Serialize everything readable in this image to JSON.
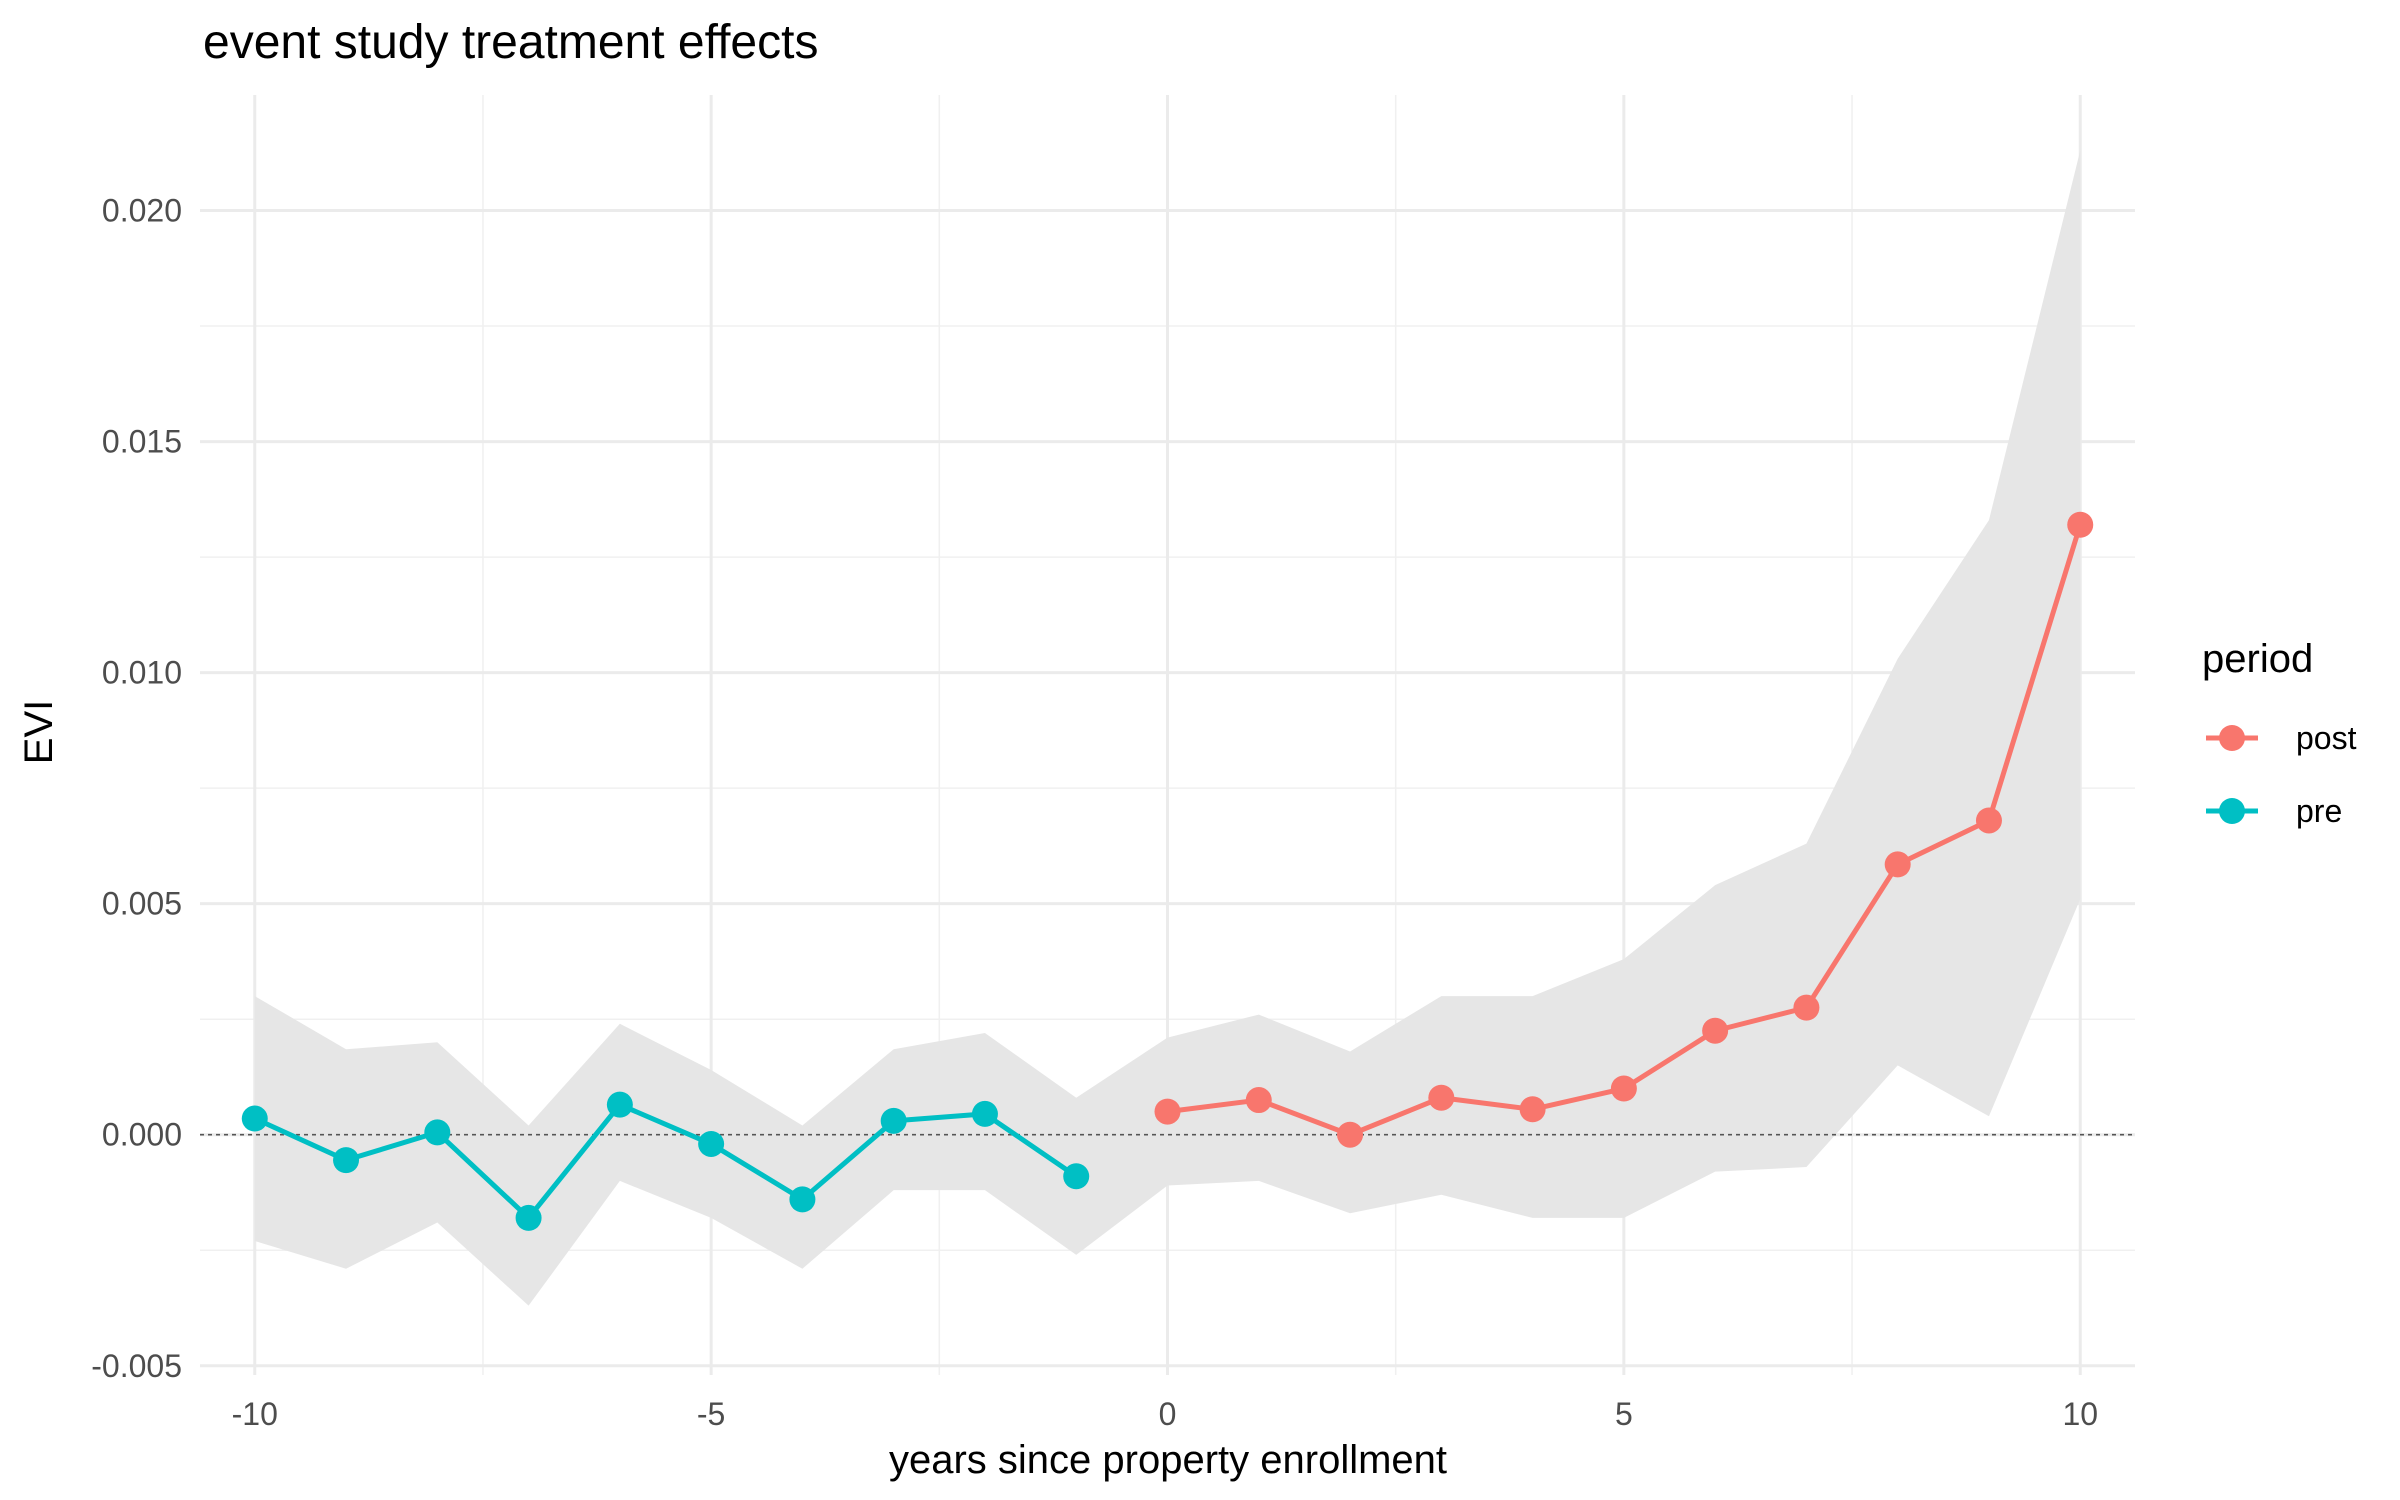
{
  "chart_data": {
    "type": "line",
    "title": "event study treatment effects",
    "xlabel": "years since property enrollment",
    "ylabel": "EVI",
    "xlim": [
      -10.6,
      10.6
    ],
    "ylim": [
      -0.0052,
      0.0225
    ],
    "x_ticks": [
      -10,
      -5,
      0,
      5,
      10
    ],
    "x_tick_labels": [
      "-10",
      "-5",
      "0",
      "5",
      "10"
    ],
    "y_ticks": [
      -0.005,
      0.0,
      0.005,
      0.01,
      0.015,
      0.02
    ],
    "y_tick_labels": [
      "-0.005",
      "0.000",
      "0.005",
      "0.010",
      "0.015",
      "0.020"
    ],
    "grid": true,
    "reference_line": 0.0,
    "legend": {
      "title": "period",
      "position": "right",
      "entries": [
        {
          "label": "post",
          "color": "#F8766D"
        },
        {
          "label": "pre",
          "color": "#00BFC4"
        }
      ]
    },
    "confidence_band": {
      "color": "#e6e6e6",
      "x": [
        -10,
        -9,
        -8,
        -7,
        -6,
        -5,
        -4,
        -3,
        -2,
        -1,
        0,
        1,
        2,
        3,
        4,
        5,
        6,
        7,
        8,
        9,
        10
      ],
      "upper": [
        0.003,
        0.00185,
        0.002,
        0.0002,
        0.0024,
        0.0014,
        0.0002,
        0.00185,
        0.0022,
        0.0008,
        0.0021,
        0.0026,
        0.0018,
        0.003,
        0.003,
        0.0038,
        0.0054,
        0.0063,
        0.0103,
        0.0133,
        0.0213
      ],
      "lower": [
        -0.0023,
        -0.0029,
        -0.0019,
        -0.0037,
        -0.001,
        -0.0018,
        -0.0029,
        -0.0012,
        -0.0012,
        -0.0026,
        -0.0011,
        -0.001,
        -0.0017,
        -0.0013,
        -0.0018,
        -0.0018,
        -0.0008,
        -0.0007,
        0.0015,
        0.0004,
        0.0051
      ]
    },
    "series": [
      {
        "name": "pre",
        "color": "#00BFC4",
        "x": [
          -10,
          -9,
          -8,
          -7,
          -6,
          -5,
          -4,
          -3,
          -2,
          -1
        ],
        "values": [
          0.00035,
          -0.00055,
          5e-05,
          -0.0018,
          0.00065,
          -0.0002,
          -0.0014,
          0.0003,
          0.00045,
          -0.0009
        ]
      },
      {
        "name": "post",
        "color": "#F8766D",
        "x": [
          0,
          1,
          2,
          3,
          4,
          5,
          6,
          7,
          8,
          9,
          10
        ],
        "values": [
          0.0005,
          0.00075,
          0.0,
          0.0008,
          0.00055,
          0.001,
          0.00225,
          0.00275,
          0.00585,
          0.0068,
          0.0132
        ]
      }
    ]
  }
}
